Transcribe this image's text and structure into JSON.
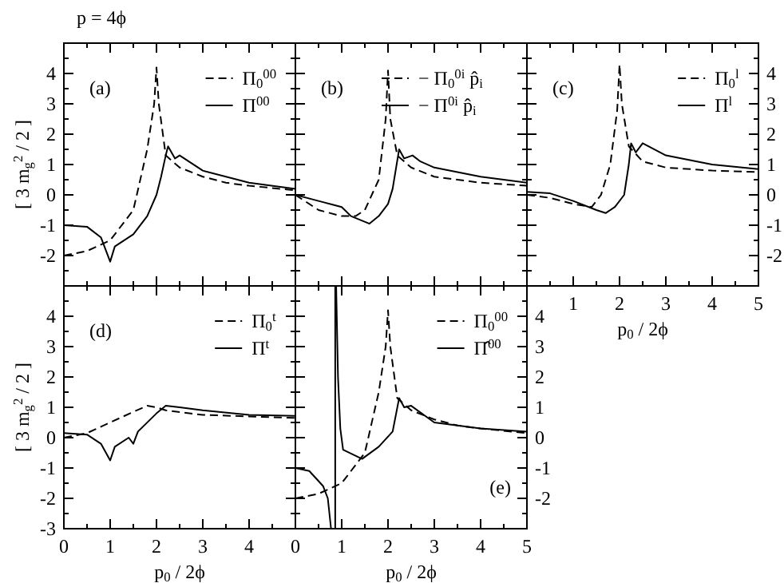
{
  "chart_data": [
    {
      "type": "line",
      "title": "p = 4ϕ",
      "ylabel": "[ 3 m$_{g}$$^{2}$ / 2 ]",
      "annotations": [
        "(a)"
      ],
      "legend": "top right",
      "tick_labels": "y",
      "marker": "none",
      "xlim": [
        0,
        5
      ],
      "xticks": [
        0,
        {
          "value": 0.5,
          "label": null
        },
        1,
        {
          "value": 1.5,
          "label": null
        },
        2,
        {
          "value": 2.5,
          "label": null
        },
        3,
        {
          "value": 3.5,
          "label": null
        },
        4,
        {
          "value": 4.5,
          "label": null
        },
        5
      ],
      "ylim": [
        -3,
        5
      ],
      "yticks": [
        {
          "value": -3,
          "label": null
        },
        {
          "value": -2.5,
          "label": null
        },
        -2,
        {
          "value": -1.5,
          "label": null
        },
        -1,
        {
          "value": -0.5,
          "label": null
        },
        0,
        {
          "value": 0.5,
          "label": null
        },
        1,
        {
          "value": 1.5,
          "label": null
        },
        2,
        {
          "value": 2.5,
          "label": null
        },
        3,
        {
          "value": 3.5,
          "label": null
        },
        4,
        {
          "value": 4.5,
          "label": null
        },
        {
          "value": 5,
          "label": null
        }
      ],
      "series": [
        {
          "name": "Π$_{0}$$^{00}$",
          "color": "#000000",
          "line_style": "dashed",
          "x": [
            0,
            0.5,
            1,
            1.5,
            1.8,
            1.95,
            2,
            2.05,
            2.2,
            2.5,
            3,
            3.5,
            4,
            5
          ],
          "values": [
            -2,
            -1.85,
            -1.5,
            -0.5,
            1.5,
            3,
            4.2,
            3,
            1.3,
            0.9,
            0.6,
            0.4,
            0.3,
            0.15
          ]
        },
        {
          "name": "Π$^{00}$",
          "color": "#000000",
          "line_style": "solid",
          "x": [
            0,
            0.5,
            0.8,
            1,
            1.1,
            1.5,
            1.8,
            2,
            2.1,
            2.2,
            2.25,
            2.4,
            2.5,
            3,
            4,
            5
          ],
          "values": [
            -1,
            -1.05,
            -1.4,
            -2.2,
            -1.7,
            -1.3,
            -0.7,
            0,
            0.6,
            1.3,
            1.6,
            1.2,
            1.3,
            0.8,
            0.4,
            0.2
          ]
        }
      ]
    },
    {
      "type": "line",
      "annotations": [
        "(b)"
      ],
      "legend": "top right",
      "tick_labels": false,
      "marker": "none",
      "xlim": [
        0,
        5
      ],
      "xticks": [
        0,
        {
          "value": 0.5,
          "label": null
        },
        1,
        {
          "value": 1.5,
          "label": null
        },
        2,
        {
          "value": 2.5,
          "label": null
        },
        3,
        {
          "value": 3.5,
          "label": null
        },
        4,
        {
          "value": 4.5,
          "label": null
        },
        5
      ],
      "ylim": [
        -3,
        5
      ],
      "yticks": [
        {
          "value": -3,
          "label": null
        },
        {
          "value": -2.5,
          "label": null
        },
        -2,
        {
          "value": -1.5,
          "label": null
        },
        -1,
        {
          "value": -0.5,
          "label": null
        },
        0,
        {
          "value": 0.5,
          "label": null
        },
        1,
        {
          "value": 1.5,
          "label": null
        },
        2,
        {
          "value": 2.5,
          "label": null
        },
        3,
        {
          "value": 3.5,
          "label": null
        },
        4,
        {
          "value": 4.5,
          "label": null
        },
        {
          "value": 5,
          "label": null
        }
      ],
      "series": [
        {
          "name": "− Π$_{0}$$^{0i}$ p̂$_{i}$",
          "color": "#000000",
          "line_style": "dashed",
          "x": [
            0,
            0.5,
            1,
            1.3,
            1.5,
            1.8,
            1.95,
            2,
            2.05,
            2.2,
            2.5,
            3,
            4,
            5
          ],
          "values": [
            0,
            -0.5,
            -0.7,
            -0.7,
            -0.5,
            0.5,
            2.5,
            4.1,
            2.5,
            1.3,
            0.9,
            0.6,
            0.4,
            0.3
          ]
        },
        {
          "name": "− Π$^{0i}$ p̂$_{i}$",
          "color": "#000000",
          "line_style": "solid",
          "x": [
            0,
            0.5,
            1,
            1.2,
            1.6,
            1.8,
            2,
            2.1,
            2.24,
            2.35,
            2.53,
            2.7,
            3,
            4,
            5
          ],
          "values": [
            0,
            -0.2,
            -0.4,
            -0.7,
            -0.95,
            -0.7,
            -0.3,
            0.2,
            1.5,
            1.2,
            1.3,
            1.1,
            0.9,
            0.6,
            0.4
          ]
        }
      ]
    },
    {
      "type": "line",
      "xlabel": "p$_{0}$ / 2ϕ",
      "annotations": [
        "(c)"
      ],
      "legend": "top right",
      "marker": "none",
      "xlim": [
        0,
        5
      ],
      "xticks": [
        {
          "value": 0,
          "label": null
        },
        {
          "value": 0.5,
          "label": null
        },
        1,
        {
          "value": 1.5,
          "label": null
        },
        2,
        {
          "value": 2.5,
          "label": null
        },
        3,
        {
          "value": 3.5,
          "label": null
        },
        4,
        {
          "value": 4.5,
          "label": null
        },
        5
      ],
      "y2lim": [
        -3,
        5
      ],
      "y2ticks": [
        {
          "value": -3,
          "label": null
        },
        {
          "value": -2.5,
          "label": null
        },
        -2,
        {
          "value": -1.5,
          "label": null
        },
        -1,
        {
          "value": -0.5,
          "label": null
        },
        0,
        {
          "value": 0.5,
          "label": null
        },
        1,
        {
          "value": 1.5,
          "label": null
        },
        2,
        {
          "value": 2.5,
          "label": null
        },
        3,
        {
          "value": 3.5,
          "label": null
        },
        4,
        {
          "value": 4.5,
          "label": null
        },
        {
          "value": 5,
          "label": null
        }
      ],
      "series": [
        {
          "name": "Π$_{0}$$^{l}$",
          "color": "#000000",
          "line_style": "dashed",
          "axis": "y2",
          "x": [
            0,
            0.5,
            1,
            1.4,
            1.6,
            1.8,
            1.95,
            2,
            2.05,
            2.2,
            2.5,
            3,
            4,
            5
          ],
          "values": [
            0,
            -0.1,
            -0.3,
            -0.4,
            0,
            1,
            2.8,
            4.3,
            3,
            1.6,
            1.1,
            0.9,
            0.8,
            0.75
          ]
        },
        {
          "name": "Π$^{l}$",
          "color": "#000000",
          "line_style": "solid",
          "axis": "y2",
          "x": [
            0,
            0.5,
            1,
            1.5,
            1.7,
            1.9,
            2.1,
            2.2,
            2.25,
            2.35,
            2.5,
            3,
            4,
            5
          ],
          "values": [
            0.1,
            0.05,
            -0.2,
            -0.5,
            -0.6,
            -0.4,
            0,
            1,
            1.7,
            1.4,
            1.7,
            1.3,
            1,
            0.85
          ]
        }
      ]
    },
    {
      "type": "line",
      "xlabel": "p$_{0}$ / 2ϕ",
      "ylabel": "[ 3 m$_{g}$$^{2}$ / 2 ]",
      "annotations": [
        "(d)"
      ],
      "legend": "top right",
      "marker": "none",
      "xlim": [
        0,
        5
      ],
      "xticks": [
        0,
        {
          "value": 0.5,
          "label": null
        },
        1,
        {
          "value": 1.5,
          "label": null
        },
        2,
        {
          "value": 2.5,
          "label": null
        },
        3,
        {
          "value": 3.5,
          "label": null
        },
        4,
        {
          "value": 4.5,
          "label": null
        },
        {
          "value": 5,
          "label": null
        }
      ],
      "ylim": [
        -3,
        5
      ],
      "yticks": [
        -3,
        {
          "value": -2.5,
          "label": null
        },
        -2,
        {
          "value": -1.5,
          "label": null
        },
        -1,
        {
          "value": -0.5,
          "label": null
        },
        0,
        {
          "value": 0.5,
          "label": null
        },
        1,
        {
          "value": 1.5,
          "label": null
        },
        2,
        {
          "value": 2.5,
          "label": null
        },
        3,
        {
          "value": 3.5,
          "label": null
        },
        4,
        {
          "value": 4.5,
          "label": null
        },
        {
          "value": 5,
          "label": null
        }
      ],
      "series": [
        {
          "name": "Π$_{0}$$^{t}$",
          "color": "#000000",
          "line_style": "dashed",
          "x": [
            0,
            0.5,
            1,
            1.5,
            1.8,
            2,
            2.2,
            3,
            4,
            5
          ],
          "values": [
            0,
            0.15,
            0.5,
            0.85,
            1.05,
            1,
            0.9,
            0.75,
            0.7,
            0.65
          ]
        },
        {
          "name": "Π$^{t}$",
          "color": "#000000",
          "line_style": "solid",
          "x": [
            0,
            0.5,
            0.8,
            1,
            1.1,
            1.4,
            1.5,
            1.6,
            2,
            2.2,
            2.5,
            3,
            4,
            5
          ],
          "values": [
            0.15,
            0.1,
            -0.2,
            -0.75,
            -0.3,
            0,
            -0.2,
            0.2,
            0.8,
            1.05,
            1,
            0.9,
            0.75,
            0.72
          ]
        }
      ]
    },
    {
      "type": "line",
      "xlabel": "p$_{0}$ / 2ϕ",
      "annotations": [
        "(e)"
      ],
      "legend": "top right",
      "marker": "none",
      "xlim": [
        0,
        5
      ],
      "xticks": [
        0,
        {
          "value": 0.5,
          "label": null
        },
        1,
        {
          "value": 1.5,
          "label": null
        },
        2,
        {
          "value": 2.5,
          "label": null
        },
        3,
        {
          "value": 3.5,
          "label": null
        },
        4,
        {
          "value": 4.5,
          "label": null
        },
        5
      ],
      "y2lim": [
        -3,
        5
      ],
      "y2ticks": [
        {
          "value": -3,
          "label": null
        },
        {
          "value": -2.5,
          "label": null
        },
        -2,
        {
          "value": -1.5,
          "label": null
        },
        -1,
        {
          "value": -0.5,
          "label": null
        },
        0,
        {
          "value": 0.5,
          "label": null
        },
        1,
        {
          "value": 1.5,
          "label": null
        },
        2,
        {
          "value": 2.5,
          "label": null
        },
        3,
        {
          "value": 3.5,
          "label": null
        },
        4,
        {
          "value": 4.5,
          "label": null
        },
        {
          "value": 5,
          "label": null
        }
      ],
      "series": [
        {
          "name": "Π$_{0}$$^{00}$",
          "color": "#000000",
          "line_style": "dashed",
          "axis": "y2",
          "x": [
            0,
            0.5,
            1,
            1.5,
            1.8,
            1.95,
            2,
            2.05,
            2.2,
            2.5,
            3,
            3.5,
            4,
            5
          ],
          "values": [
            -2,
            -1.85,
            -1.5,
            -0.5,
            1.5,
            3,
            4.2,
            3,
            1.3,
            0.9,
            0.6,
            0.4,
            0.3,
            0.15
          ]
        },
        {
          "name": "Π̂$^{00}$",
          "color": "#000000",
          "line_style": "solid",
          "axis": "y2",
          "x": [
            0,
            0.3,
            0.6,
            0.7,
            0.77,
            0.8,
            0.86,
            0.86,
            0.87,
            0.88,
            0.92,
            0.97,
            1.03,
            1.44,
            1.8,
            2.1,
            2.24,
            2.35,
            2.5,
            3,
            4,
            5
          ],
          "values": [
            -1,
            -1.1,
            -1.6,
            -2,
            -3,
            null,
            -3,
            5,
            null,
            5,
            2,
            0.3,
            -0.4,
            -0.7,
            -0.3,
            0.2,
            1.3,
            1,
            1.05,
            0.5,
            0.3,
            0.2
          ]
        }
      ]
    }
  ]
}
